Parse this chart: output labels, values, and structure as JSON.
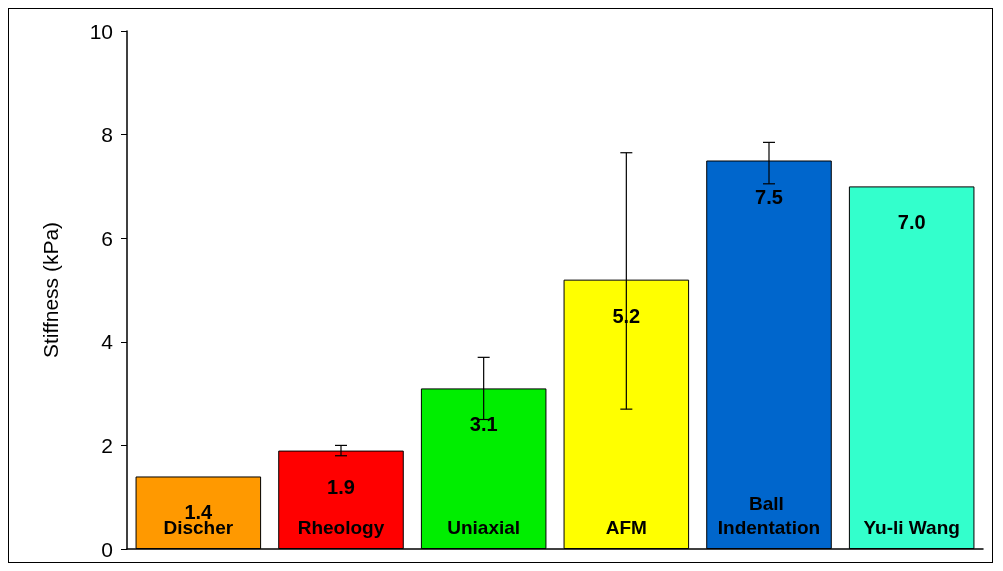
{
  "chart_data": {
    "type": "bar",
    "ylabel": "Stiffness (kPa)",
    "categories": [
      "Discher",
      "Rheology",
      "Uniaxial",
      "AFM",
      "Ball Indentation",
      "Yu-li Wang"
    ],
    "values": [
      1.4,
      1.9,
      3.1,
      5.2,
      7.5,
      7.0
    ],
    "colors": [
      "#ff9900",
      "#ff0000",
      "#00ee00",
      "#ffff00",
      "#0066cc",
      "#33ffcc"
    ],
    "errors": [
      null,
      [
        1.8,
        2.0
      ],
      [
        2.5,
        3.7
      ],
      [
        2.7,
        7.65
      ],
      [
        7.05,
        7.85
      ],
      null
    ],
    "value_labels": [
      "1.4",
      "1.9",
      "3.1",
      "5.2",
      "7.5",
      "7.0"
    ],
    "ylim": [
      0,
      10
    ],
    "yticks": [
      0,
      2,
      4,
      6,
      8,
      10
    ],
    "grid": false
  }
}
